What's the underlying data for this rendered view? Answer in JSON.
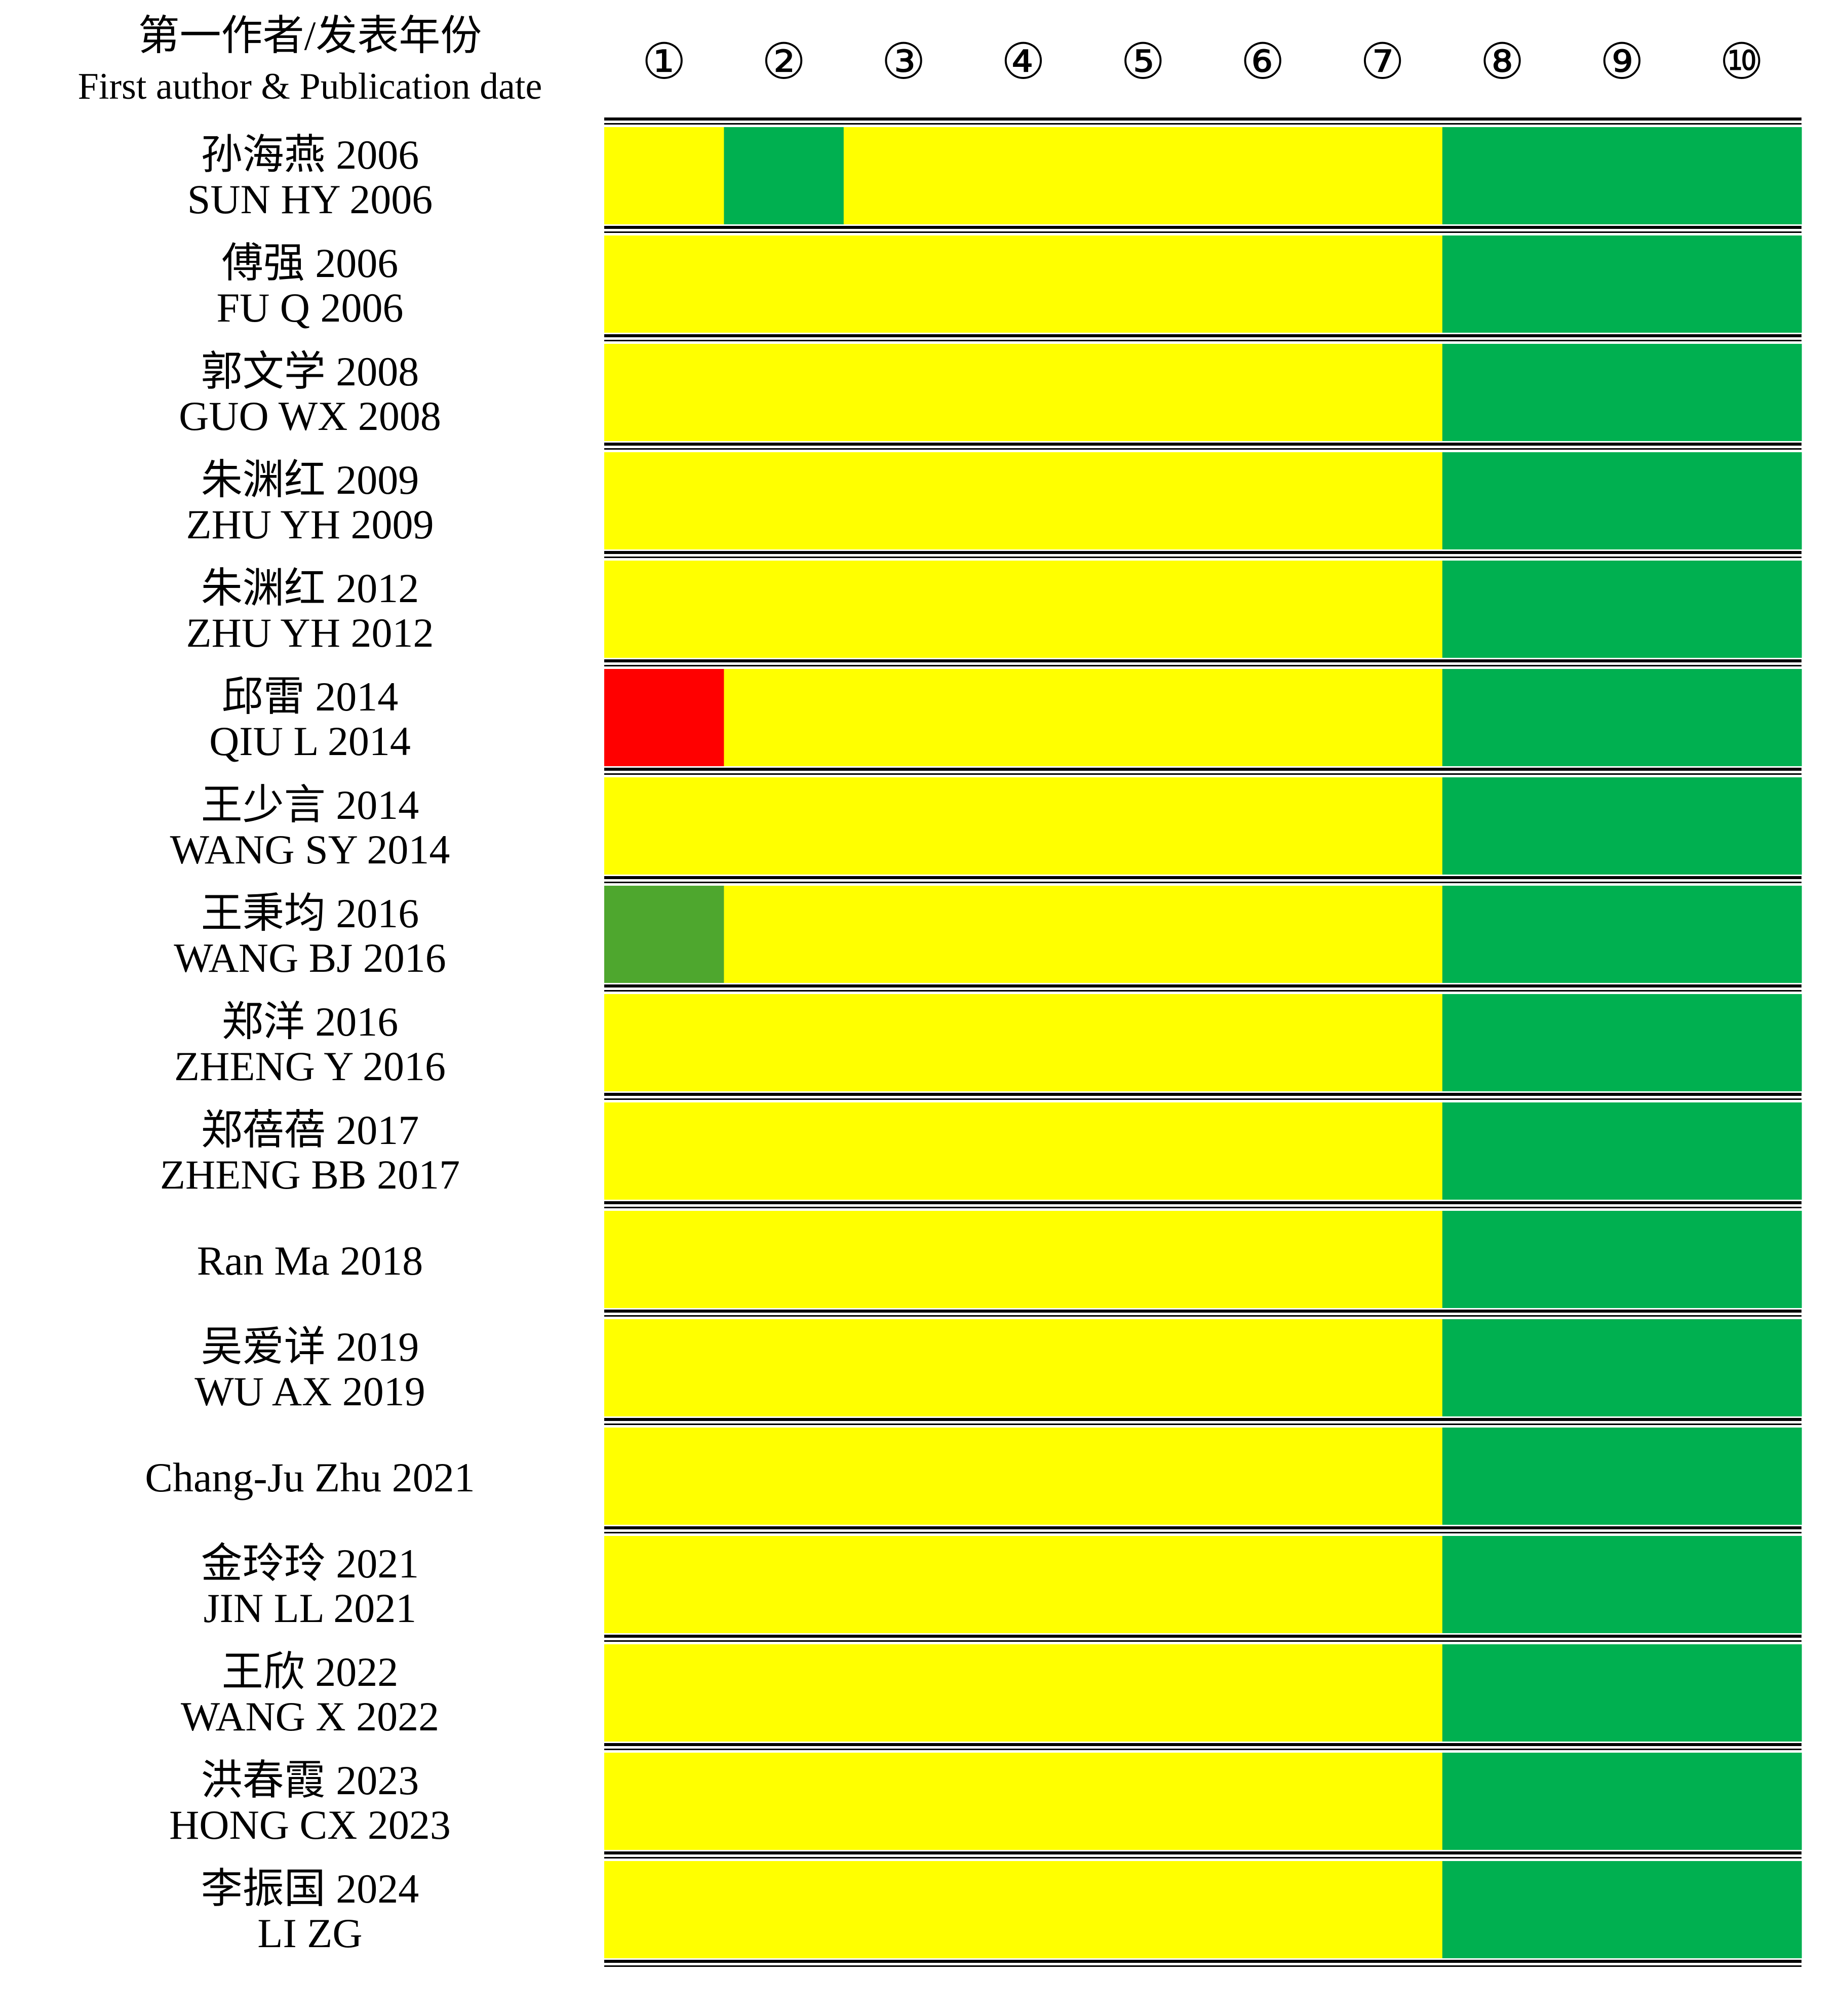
{
  "header": {
    "label_cn": "第一作者/发表年份",
    "label_en": "First author & Publication date",
    "column_labels": [
      "①",
      "②",
      "③",
      "④",
      "⑤",
      "⑥",
      "⑦",
      "⑧",
      "⑨",
      "⑩"
    ]
  },
  "colors": {
    "Y": "#ffff00",
    "G": "#00b050",
    "R": "#ff0000",
    "L": "#4ea72e"
  },
  "chart_data": {
    "type": "heatmap",
    "columns": [
      "①",
      "②",
      "③",
      "④",
      "⑤",
      "⑥",
      "⑦",
      "⑧",
      "⑨",
      "⑩"
    ],
    "rows": [
      {
        "cn": "孙海燕 2006",
        "en": "SUN HY 2006",
        "cells": [
          "Y",
          "G",
          "Y",
          "Y",
          "Y",
          "Y",
          "Y",
          "G",
          "G",
          "G"
        ]
      },
      {
        "cn": "傅强  2006",
        "en": "FU Q 2006",
        "cells": [
          "Y",
          "Y",
          "Y",
          "Y",
          "Y",
          "Y",
          "Y",
          "G",
          "G",
          "G"
        ]
      },
      {
        "cn": "郭文学 2008",
        "en": "GUO WX 2008",
        "cells": [
          "Y",
          "Y",
          "Y",
          "Y",
          "Y",
          "Y",
          "Y",
          "G",
          "G",
          "G"
        ]
      },
      {
        "cn": "朱渊红 2009",
        "en": "ZHU YH 2009",
        "cells": [
          "Y",
          "Y",
          "Y",
          "Y",
          "Y",
          "Y",
          "Y",
          "G",
          "G",
          "G"
        ]
      },
      {
        "cn": "朱渊红 2012",
        "en": "ZHU YH 2012",
        "cells": [
          "Y",
          "Y",
          "Y",
          "Y",
          "Y",
          "Y",
          "Y",
          "G",
          "G",
          "G"
        ]
      },
      {
        "cn": "邱雷  2014",
        "en": "QIU L 2014",
        "cells": [
          "R",
          "Y",
          "Y",
          "Y",
          "Y",
          "Y",
          "Y",
          "G",
          "G",
          "G"
        ]
      },
      {
        "cn": "王少言  2014",
        "en": "WANG SY 2014",
        "cells": [
          "Y",
          "Y",
          "Y",
          "Y",
          "Y",
          "Y",
          "Y",
          "G",
          "G",
          "G"
        ]
      },
      {
        "cn": "王秉均  2016",
        "en": "WANG BJ 2016",
        "cells": [
          "L",
          "Y",
          "Y",
          "Y",
          "Y",
          "Y",
          "Y",
          "G",
          "G",
          "G"
        ]
      },
      {
        "cn": "郑洋 2016",
        "en": "ZHENG Y 2016",
        "cells": [
          "Y",
          "Y",
          "Y",
          "Y",
          "Y",
          "Y",
          "Y",
          "G",
          "G",
          "G"
        ]
      },
      {
        "cn": "郑蓓蓓  2017",
        "en": "ZHENG BB 2017",
        "cells": [
          "Y",
          "Y",
          "Y",
          "Y",
          "Y",
          "Y",
          "Y",
          "G",
          "G",
          "G"
        ]
      },
      {
        "cn": "",
        "en": "Ran Ma 2018",
        "cells": [
          "Y",
          "Y",
          "Y",
          "Y",
          "Y",
          "Y",
          "Y",
          "G",
          "G",
          "G"
        ]
      },
      {
        "cn": "吴爱详 2019",
        "en": "WU AX 2019",
        "cells": [
          "Y",
          "Y",
          "Y",
          "Y",
          "Y",
          "Y",
          "Y",
          "G",
          "G",
          "G"
        ]
      },
      {
        "cn": "",
        "en": "Chang-Ju Zhu 2021",
        "cells": [
          "Y",
          "Y",
          "Y",
          "Y",
          "Y",
          "Y",
          "Y",
          "G",
          "G",
          "G"
        ]
      },
      {
        "cn": "金玲玲 2021",
        "en": "JIN LL 2021",
        "cells": [
          "Y",
          "Y",
          "Y",
          "Y",
          "Y",
          "Y",
          "Y",
          "G",
          "G",
          "G"
        ]
      },
      {
        "cn": "王欣 2022",
        "en": "WANG X 2022",
        "cells": [
          "Y",
          "Y",
          "Y",
          "Y",
          "Y",
          "Y",
          "Y",
          "G",
          "G",
          "G"
        ]
      },
      {
        "cn": "洪春霞 2023",
        "en": "HONG CX 2023",
        "cells": [
          "Y",
          "Y",
          "Y",
          "Y",
          "Y",
          "Y",
          "Y",
          "G",
          "G",
          "G"
        ]
      },
      {
        "cn": "李振国 2024",
        "en": "LI ZG",
        "cells": [
          "Y",
          "Y",
          "Y",
          "Y",
          "Y",
          "Y",
          "Y",
          "G",
          "G",
          "G"
        ]
      }
    ]
  }
}
